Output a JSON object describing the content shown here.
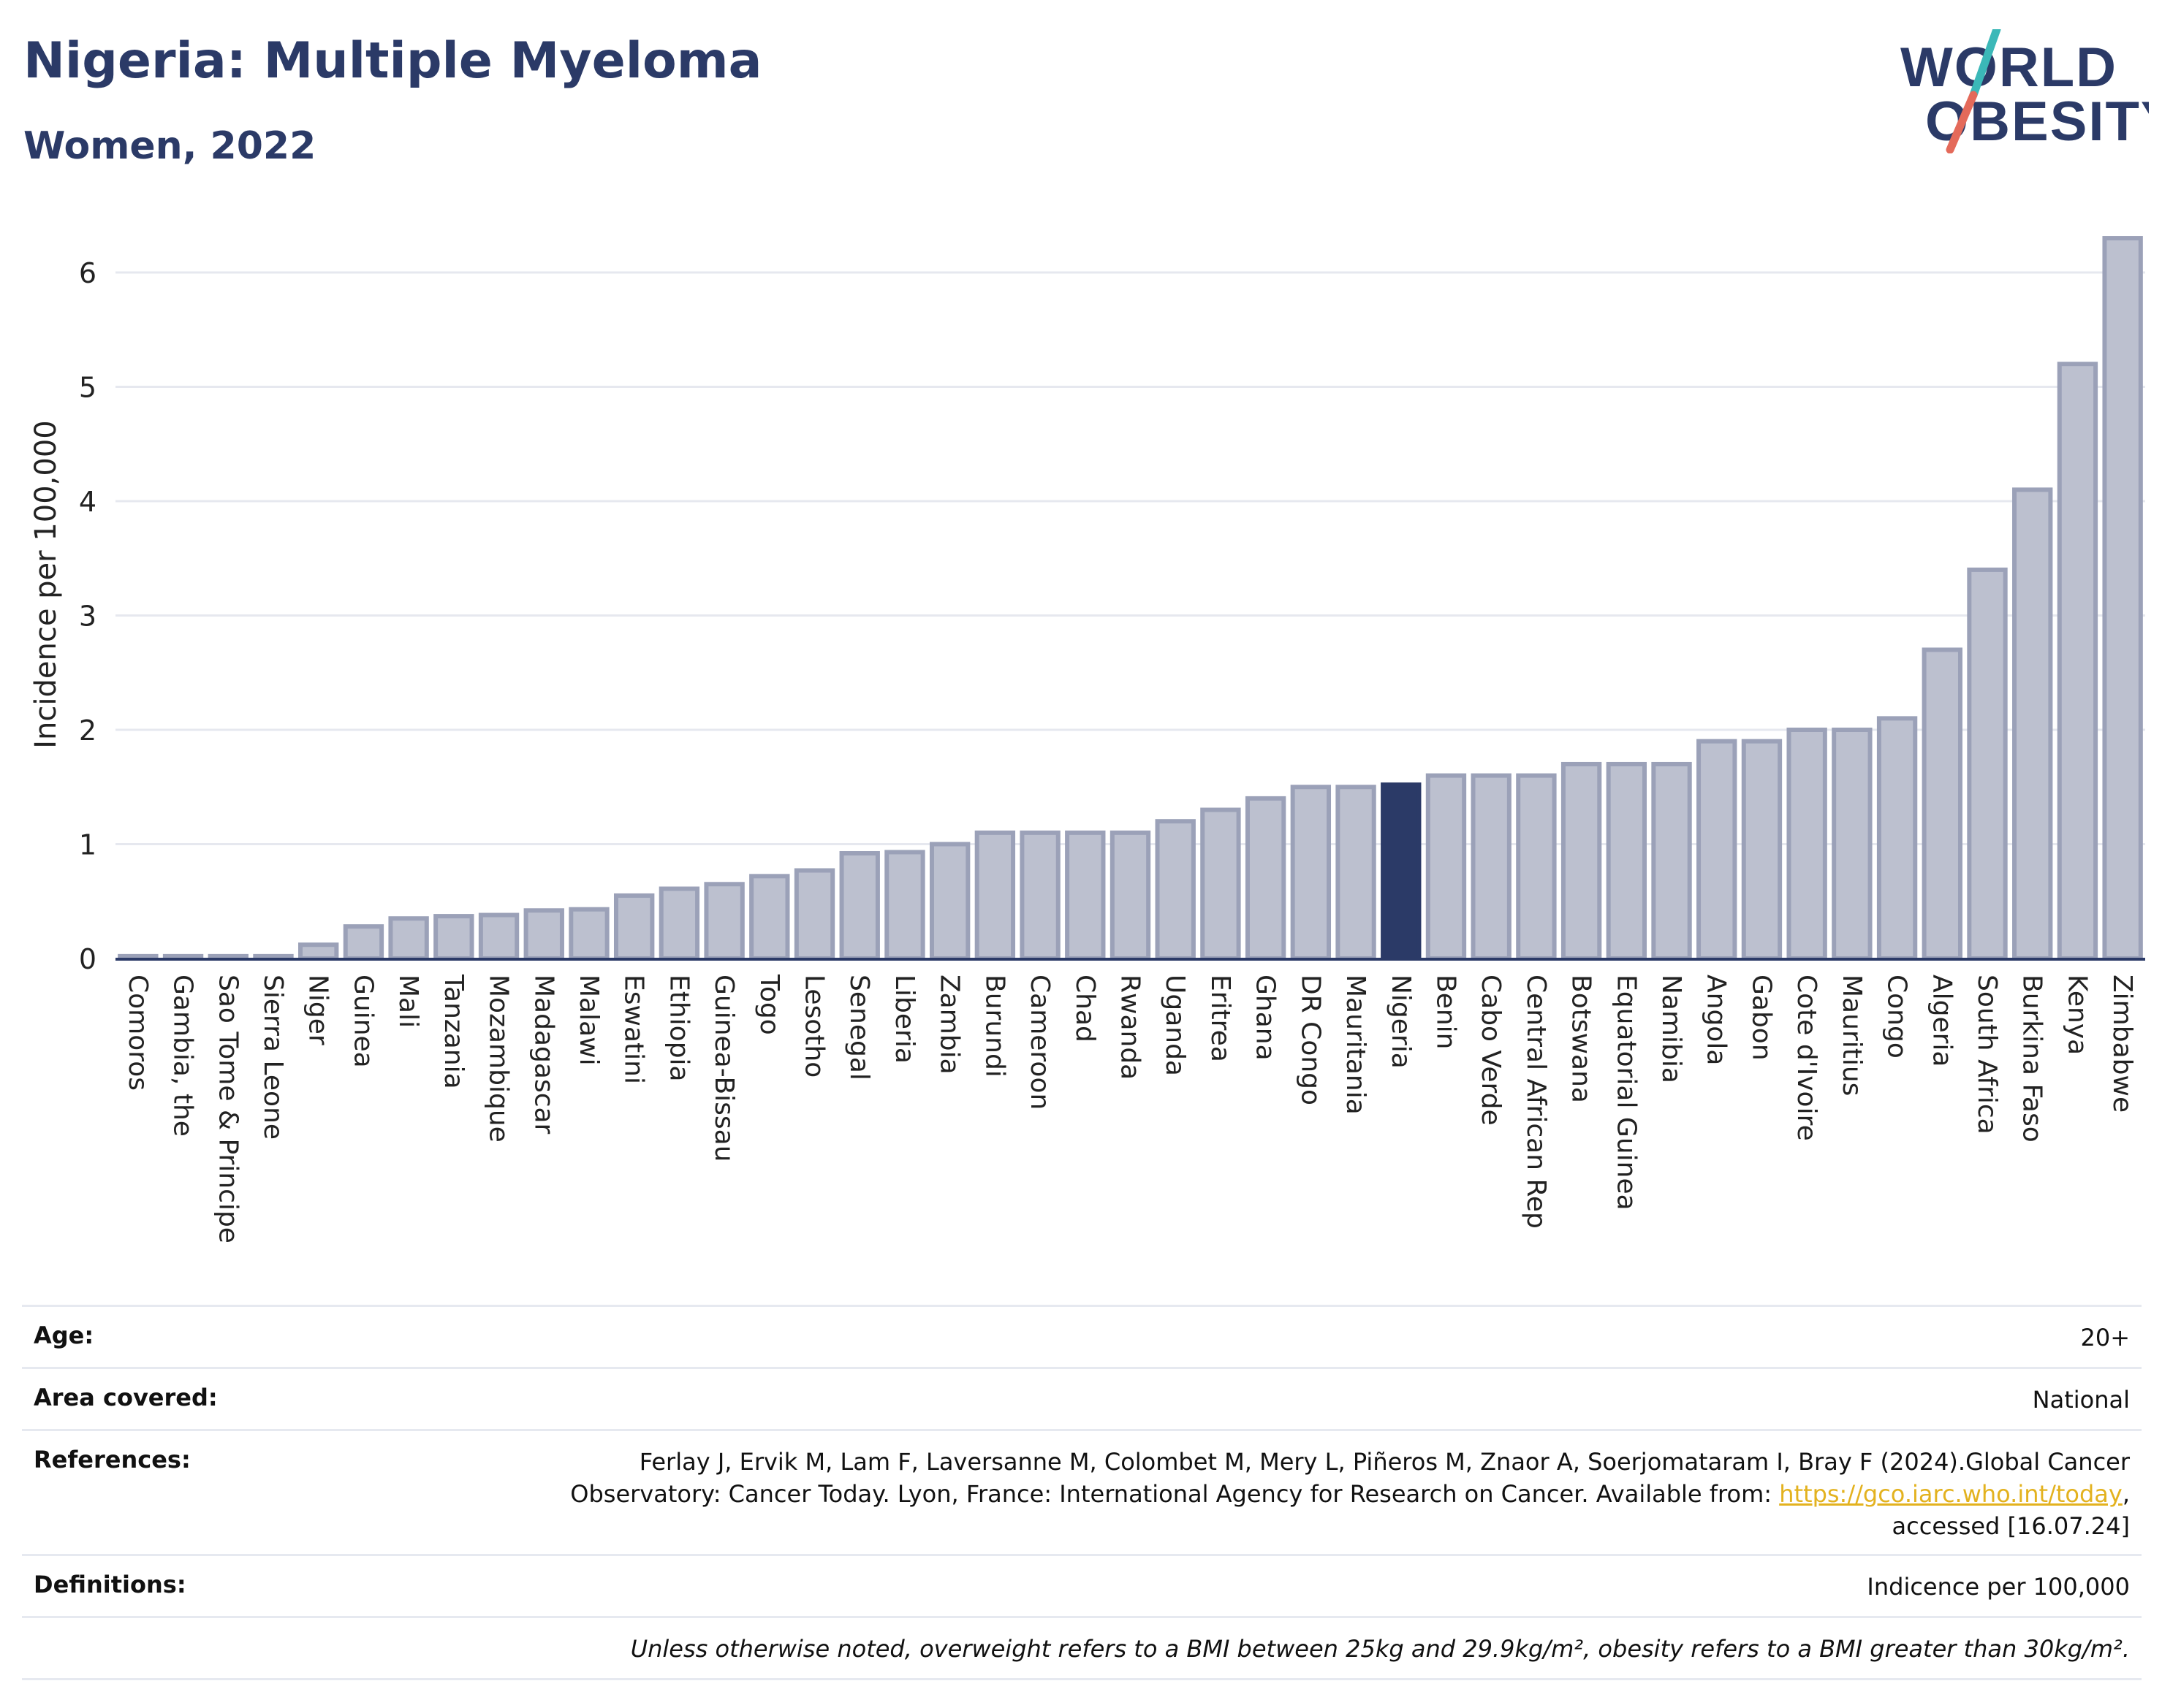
{
  "header": {
    "title": "Nigeria: Multiple Myeloma",
    "subtitle": "Women, 2022"
  },
  "logo": {
    "line1": "WORLD",
    "line2": "OBESITY"
  },
  "colors": {
    "bar": "#bcc0cf",
    "bar_stroke": "#9ba1b8",
    "highlight": "#2b3a67",
    "title": "#2b3a67",
    "logo_teal": "#3bb8b8",
    "logo_red": "#e46a5a",
    "link": "#e3b21f"
  },
  "chart_data": {
    "type": "bar",
    "ylabel": "Incidence per 100,000",
    "ylim": [
      0,
      6.35
    ],
    "yticks": [
      0,
      1,
      2,
      3,
      4,
      5,
      6
    ],
    "grid": true,
    "highlight": "Nigeria",
    "categories": [
      "Comoros",
      "Gambia, the",
      "Sao Tome & Principe",
      "Sierra Leone",
      "Niger",
      "Guinea",
      "Mali",
      "Tanzania",
      "Mozambique",
      "Madagascar",
      "Malawi",
      "Eswatini",
      "Ethiopia",
      "Guinea-Bissau",
      "Togo",
      "Lesotho",
      "Senegal",
      "Liberia",
      "Zambia",
      "Burundi",
      "Cameroon",
      "Chad",
      "Rwanda",
      "Uganda",
      "Eritrea",
      "Ghana",
      "DR Congo",
      "Mauritania",
      "Nigeria",
      "Benin",
      "Cabo Verde",
      "Central African Rep",
      "Botswana",
      "Equatorial Guinea",
      "Namibia",
      "Angola",
      "Gabon",
      "Cote d'Ivoire",
      "Mauritius",
      "Congo",
      "Algeria",
      "South Africa",
      "Burkina Faso",
      "Kenya",
      "Zimbabwe"
    ],
    "values": [
      0.02,
      0.02,
      0.02,
      0.02,
      0.12,
      0.28,
      0.35,
      0.37,
      0.38,
      0.42,
      0.43,
      0.55,
      0.61,
      0.65,
      0.72,
      0.77,
      0.92,
      0.93,
      1.0,
      1.1,
      1.1,
      1.1,
      1.1,
      1.2,
      1.3,
      1.4,
      1.5,
      1.5,
      1.52,
      1.6,
      1.6,
      1.6,
      1.7,
      1.7,
      1.7,
      1.9,
      1.9,
      2.0,
      2.0,
      2.1,
      2.7,
      3.4,
      4.1,
      5.2,
      6.3
    ]
  },
  "meta": {
    "age": {
      "label": "Age:",
      "value": "20+"
    },
    "area": {
      "label": "Area covered:",
      "value": "National"
    },
    "references": {
      "label": "References:",
      "line1": "Ferlay J, Ervik M, Lam F, Laversanne M, Colombet M, Mery L, Piñeros M, Znaor A, Soerjomataram I, Bray F (2024).Global Cancer",
      "line2_prefix": "Observatory: Cancer Today. Lyon, France: International Agency for Research on Cancer. Available from: ",
      "link": "https://gco.iarc.who.int/today",
      "line2_suffix": ",",
      "line3": "accessed [16.07.24]"
    },
    "definitions": {
      "label": "Definitions:",
      "value": "Indicence per 100,000"
    },
    "note": "Unless otherwise noted, overweight refers to a BMI between 25kg and 29.9kg/m², obesity refers to a BMI greater than 30kg/m²."
  }
}
